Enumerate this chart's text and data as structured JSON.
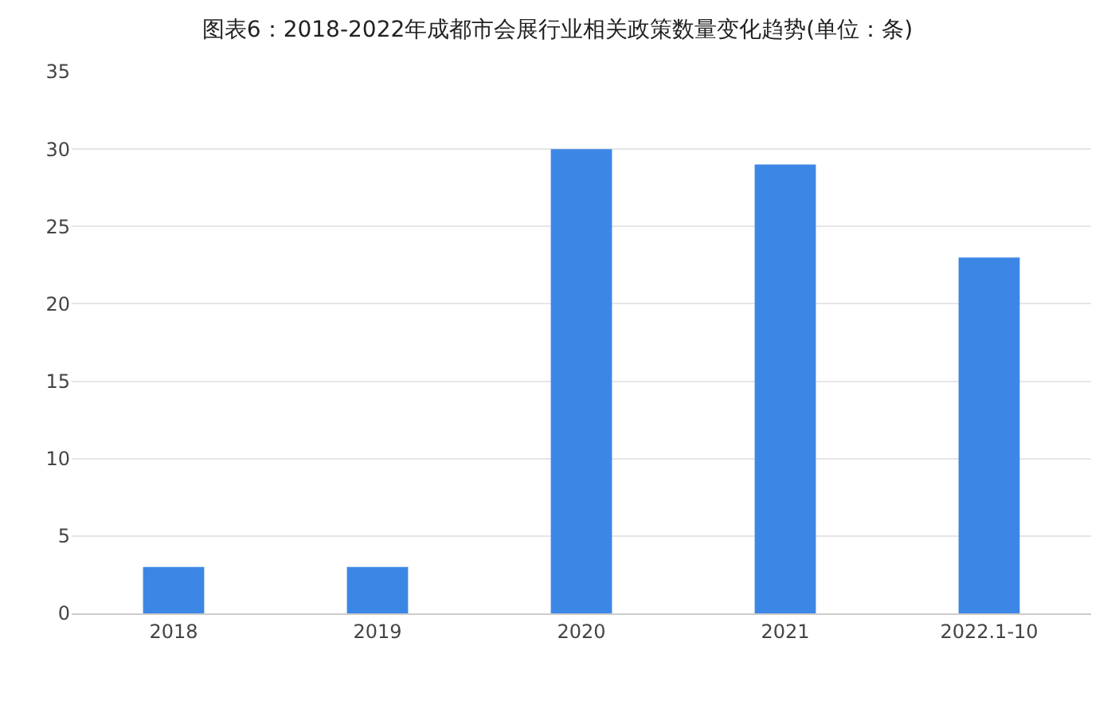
{
  "chart_data": {
    "type": "bar",
    "title": "图表6：2018-2022年成都市会展行业相关政策数量变化趋势(单位：条)",
    "categories": [
      "2018",
      "2019",
      "2020",
      "2021",
      "2022.1-10"
    ],
    "values": [
      3,
      3,
      30,
      29,
      23
    ],
    "color": "#3c87e6",
    "ylim": [
      0,
      35
    ],
    "yticks": [
      0,
      5,
      10,
      15,
      20,
      25,
      30,
      35
    ],
    "grid": "y"
  }
}
